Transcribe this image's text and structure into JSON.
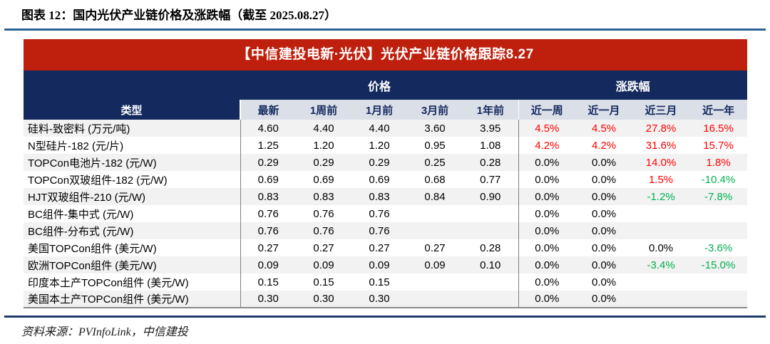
{
  "title": "图表 12：国内光伏产业链价格及涨跌幅（截至 2025.08.27）",
  "banner": "【中信建投电新·光伏】光伏产业链价格跟踪8.27",
  "table": {
    "col_group_price": "价格",
    "col_group_change": "涨跌幅",
    "type_header": "类型",
    "price_cols": [
      "最新",
      "1周前",
      "1月前",
      "3月前",
      "1年前"
    ],
    "change_cols": [
      "近一周",
      "近一月",
      "近三月",
      "近一年"
    ],
    "rows": [
      {
        "name": "硅料-致密料 (万元/吨)",
        "prices": [
          "4.60",
          "4.40",
          "4.40",
          "3.60",
          "3.95"
        ],
        "changes": [
          {
            "t": "4.5%",
            "s": "up"
          },
          {
            "t": "4.5%",
            "s": "up"
          },
          {
            "t": "27.8%",
            "s": "up"
          },
          {
            "t": "16.5%",
            "s": "up"
          }
        ]
      },
      {
        "name": "N型硅片-182 (元/片)",
        "prices": [
          "1.25",
          "1.20",
          "1.20",
          "0.95",
          "1.08"
        ],
        "changes": [
          {
            "t": "4.2%",
            "s": "up"
          },
          {
            "t": "4.2%",
            "s": "up"
          },
          {
            "t": "31.6%",
            "s": "up"
          },
          {
            "t": "15.7%",
            "s": "up"
          }
        ]
      },
      {
        "name": "TOPCon电池片-182 (元/W)",
        "prices": [
          "0.29",
          "0.29",
          "0.29",
          "0.25",
          "0.28"
        ],
        "changes": [
          {
            "t": "0.0%",
            "s": "flat"
          },
          {
            "t": "0.0%",
            "s": "flat"
          },
          {
            "t": "14.0%",
            "s": "up"
          },
          {
            "t": "1.8%",
            "s": "up"
          }
        ]
      },
      {
        "name": "TOPCon双玻组件-182 (元/W)",
        "prices": [
          "0.69",
          "0.69",
          "0.69",
          "0.68",
          "0.77"
        ],
        "changes": [
          {
            "t": "0.0%",
            "s": "flat"
          },
          {
            "t": "0.0%",
            "s": "flat"
          },
          {
            "t": "1.5%",
            "s": "up"
          },
          {
            "t": "-10.4%",
            "s": "down"
          }
        ]
      },
      {
        "name": "HJT双玻组件-210 (元/W)",
        "prices": [
          "0.83",
          "0.83",
          "0.83",
          "0.84",
          "0.90"
        ],
        "changes": [
          {
            "t": "0.0%",
            "s": "flat"
          },
          {
            "t": "0.0%",
            "s": "flat"
          },
          {
            "t": "-1.2%",
            "s": "down"
          },
          {
            "t": "-7.8%",
            "s": "down"
          }
        ]
      },
      {
        "name": "BC组件-集中式 (元/W)",
        "prices": [
          "0.76",
          "0.76",
          "0.76",
          "",
          ""
        ],
        "changes": [
          {
            "t": "0.0%",
            "s": "flat"
          },
          {
            "t": "0.0%",
            "s": "flat"
          },
          {
            "t": "",
            "s": ""
          },
          {
            "t": "",
            "s": ""
          }
        ]
      },
      {
        "name": "BC组件-分布式 (元/W)",
        "prices": [
          "0.76",
          "0.76",
          "0.76",
          "",
          ""
        ],
        "changes": [
          {
            "t": "0.0%",
            "s": "flat"
          },
          {
            "t": "0.0%",
            "s": "flat"
          },
          {
            "t": "",
            "s": ""
          },
          {
            "t": "",
            "s": ""
          }
        ]
      },
      {
        "name": "美国TOPCon组件 (美元/W)",
        "prices": [
          "0.27",
          "0.27",
          "0.27",
          "0.27",
          "0.28"
        ],
        "changes": [
          {
            "t": "0.0%",
            "s": "flat"
          },
          {
            "t": "0.0%",
            "s": "flat"
          },
          {
            "t": "0.0%",
            "s": "flat"
          },
          {
            "t": "-3.6%",
            "s": "down"
          }
        ]
      },
      {
        "name": "欧洲TOPCon组件 (美元/W)",
        "prices": [
          "0.09",
          "0.09",
          "0.09",
          "0.09",
          "0.10"
        ],
        "changes": [
          {
            "t": "0.0%",
            "s": "flat"
          },
          {
            "t": "0.0%",
            "s": "flat"
          },
          {
            "t": "-3.4%",
            "s": "down"
          },
          {
            "t": "-15.0%",
            "s": "down"
          }
        ]
      },
      {
        "name": "印度本土产TOPCon组件 (美元/W)",
        "prices": [
          "0.15",
          "0.15",
          "0.15",
          "",
          ""
        ],
        "changes": [
          {
            "t": "0.0%",
            "s": "flat"
          },
          {
            "t": "0.0%",
            "s": "flat"
          },
          {
            "t": "",
            "s": ""
          },
          {
            "t": "",
            "s": ""
          }
        ]
      },
      {
        "name": "美国本土产TOPCon组件 (美元/W)",
        "prices": [
          "0.30",
          "0.30",
          "0.30",
          "",
          ""
        ],
        "changes": [
          {
            "t": "0.0%",
            "s": "flat"
          },
          {
            "t": "0.0%",
            "s": "flat"
          },
          {
            "t": "",
            "s": ""
          },
          {
            "t": "",
            "s": ""
          }
        ]
      }
    ]
  },
  "source": "资料来源：PVInfoLink，中信建投",
  "colors": {
    "banner-red": "#bf200e",
    "header-navy": "#14295e",
    "subhead-bg": "#dbe0e8",
    "stripe": "#f2f2f2",
    "up-red": "#ff0000",
    "down-green": "#00b050",
    "rule-top": "#2e6096",
    "rule-bottom": "#1e3c6d"
  }
}
